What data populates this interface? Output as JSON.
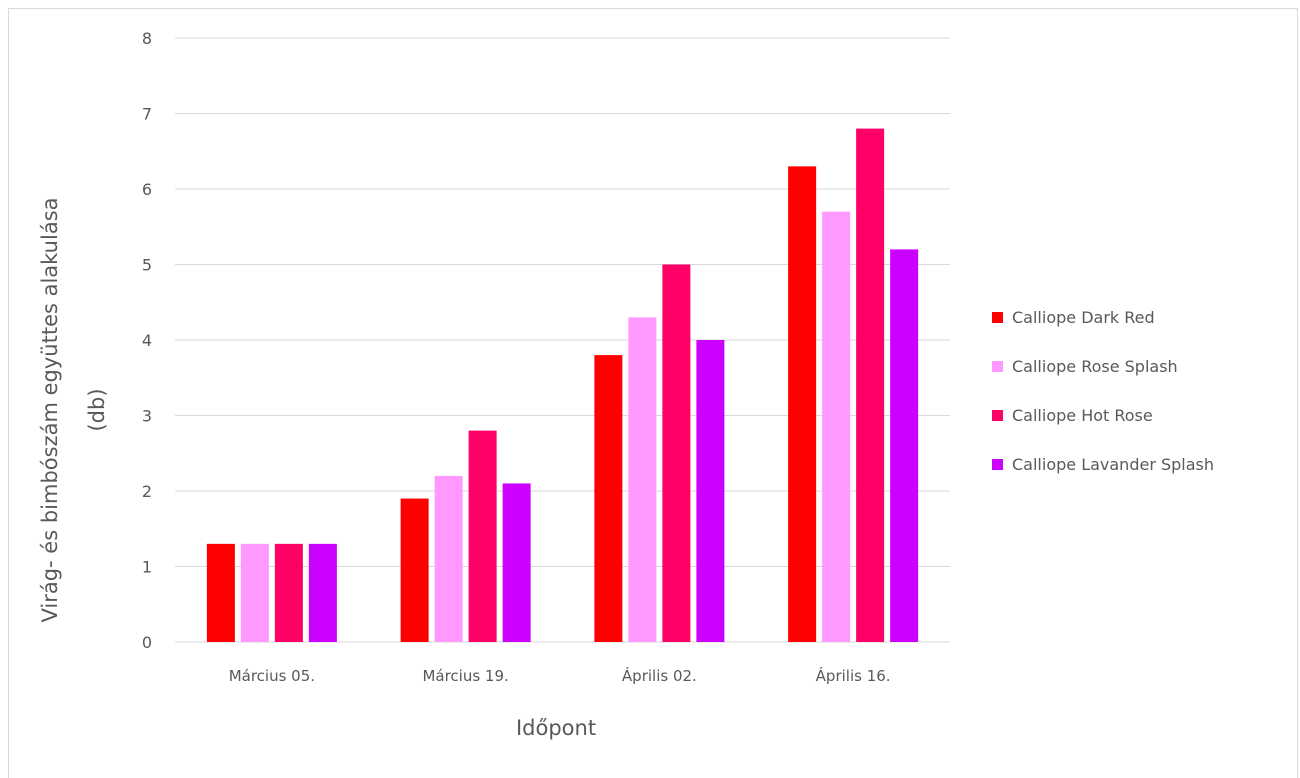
{
  "chart_data": {
    "type": "bar",
    "categories": [
      "Március 05.",
      "Március 19.",
      "Április 02.",
      "Április 16."
    ],
    "series": [
      {
        "name": "Calliope Dark Red",
        "color": "#ff0000",
        "values": [
          1.3,
          1.9,
          3.8,
          6.3
        ]
      },
      {
        "name": "Calliope Rose Splash",
        "color": "#ff99ff",
        "values": [
          1.3,
          2.2,
          4.3,
          5.7
        ]
      },
      {
        "name": "Calliope Hot Rose",
        "color": "#ff0066",
        "values": [
          1.3,
          2.8,
          5.0,
          6.8
        ]
      },
      {
        "name": "Calliope Lavander Splash",
        "color": "#cc00ff",
        "values": [
          1.3,
          2.1,
          4.0,
          5.2
        ]
      }
    ],
    "xlabel": "Időpont",
    "ylabel_lines": [
      "Virág- és bimbószám együttes alakulása",
      "(db)"
    ],
    "ylim": [
      0,
      8
    ],
    "yticks": [
      "0",
      "1",
      "2",
      "3",
      "4",
      "5",
      "6",
      "7",
      "8"
    ],
    "grid": true,
    "legend_position": "right"
  }
}
